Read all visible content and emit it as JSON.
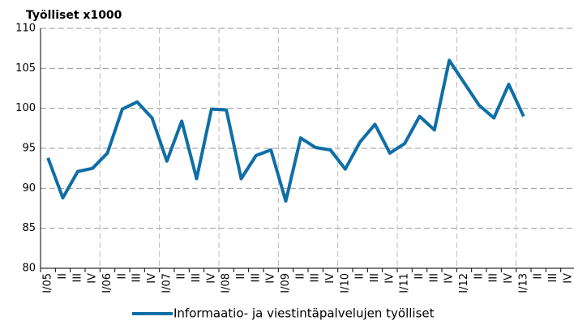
{
  "chart_data": {
    "type": "line",
    "y_label": "Työlliset x1000",
    "categories": [
      "I/05",
      "II",
      "III",
      "IV",
      "I/06",
      "II",
      "III",
      "IV",
      "I/07",
      "II",
      "III",
      "IV",
      "I/08",
      "II",
      "III",
      "IV",
      "I/09",
      "II",
      "III",
      "IV",
      "I/10",
      "II",
      "III",
      "IV",
      "I/11",
      "II",
      "III",
      "IV",
      "I/12",
      "II",
      "III",
      "IV",
      "I/13",
      "II",
      "III",
      "IV"
    ],
    "series": [
      {
        "name": "Informaatio- ja viestintäpalvelujen työlliset",
        "color": "#0f6ea6",
        "values": [
          93.8,
          88.8,
          92.1,
          92.5,
          94.4,
          99.9,
          100.8,
          98.8,
          93.4,
          98.4,
          91.2,
          99.9,
          99.8,
          91.2,
          94.1,
          94.8,
          88.4,
          96.3,
          95.1,
          94.8,
          92.4,
          95.8,
          98.0,
          94.4,
          95.6,
          99.0,
          97.3,
          106.0,
          103.2,
          100.4,
          98.8,
          103.0,
          99.0,
          null,
          null,
          null
        ]
      }
    ],
    "ylim": [
      80,
      110
    ],
    "yticks": [
      80,
      85,
      90,
      95,
      100,
      105,
      110
    ],
    "grid": true,
    "legend": "bottom"
  }
}
